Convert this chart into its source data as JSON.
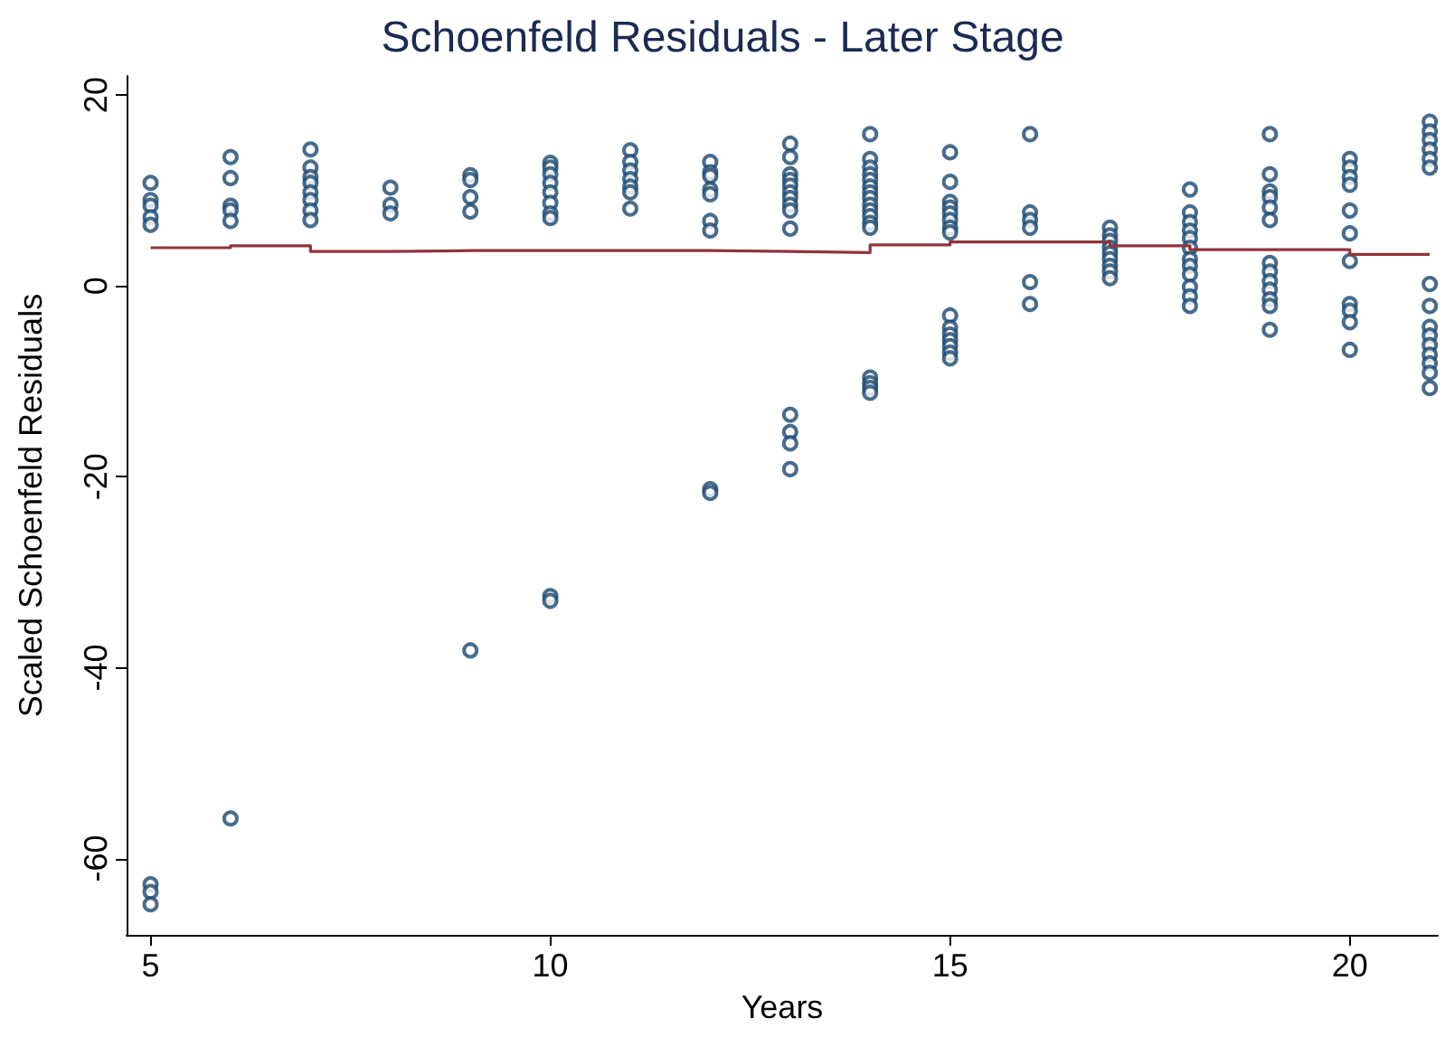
{
  "chart_data": {
    "type": "scatter",
    "title": "Schoenfeld Residuals - Later Stage",
    "xlabel": "Years",
    "ylabel": "Scaled Schoenfeld Residuals",
    "xlim": [
      4.7,
      21.1
    ],
    "xticks": [
      5,
      10,
      15,
      20
    ],
    "ylim": [
      -68,
      22
    ],
    "yticks": [
      -60,
      -40,
      -20,
      0,
      20
    ],
    "grid": false,
    "series": [
      {
        "marker": "circle",
        "color": "#1a476f",
        "x": [
          5,
          5,
          5,
          5,
          5,
          5,
          5,
          5,
          6,
          6,
          6,
          6,
          6,
          6,
          7,
          7,
          7,
          7,
          7,
          7,
          7,
          7,
          8,
          8,
          8,
          9,
          9,
          9,
          9,
          9,
          10,
          10,
          10,
          10,
          10,
          10,
          10,
          10,
          10,
          10,
          11,
          11,
          11,
          11,
          11,
          11,
          11,
          12,
          12,
          12,
          12,
          12,
          12,
          12,
          12,
          12,
          13,
          13,
          13,
          13,
          13,
          13,
          13,
          13,
          13,
          13,
          13,
          13,
          13,
          13,
          14,
          14,
          14,
          14,
          14,
          14,
          14,
          14,
          14,
          14,
          14,
          14,
          14,
          14,
          14,
          14,
          14,
          15,
          15,
          15,
          15,
          15,
          15,
          15,
          15,
          15,
          15,
          15,
          15,
          15,
          15,
          15,
          16,
          16,
          16,
          16,
          16,
          16,
          17,
          17,
          17,
          17,
          17,
          17,
          17,
          17,
          17,
          18,
          18,
          18,
          18,
          18,
          18,
          18,
          18,
          18,
          18,
          18,
          18,
          19,
          19,
          19,
          19,
          19,
          19,
          19,
          19,
          19,
          19,
          19,
          19,
          19,
          20,
          20,
          20,
          20,
          20,
          20,
          20,
          20,
          20,
          20,
          20,
          21,
          21,
          21,
          21,
          21,
          21,
          21,
          21,
          21,
          21,
          21,
          21,
          21,
          21,
          21
        ],
        "values": [
          10.8,
          9.0,
          8.4,
          7.2,
          6.4,
          -62.7,
          -63.5,
          -64.8,
          13.5,
          11.3,
          8.4,
          7.9,
          6.8,
          -55.8,
          14.3,
          12.4,
          11.4,
          10.8,
          9.8,
          9.0,
          7.9,
          6.9,
          10.3,
          8.5,
          7.6,
          11.6,
          11.1,
          9.3,
          7.8,
          -38.2,
          12.9,
          12.4,
          11.7,
          10.8,
          9.8,
          8.7,
          7.6,
          7.1,
          -32.5,
          -33.0,
          14.2,
          13.0,
          12.1,
          11.2,
          10.4,
          9.8,
          8.1,
          13.0,
          11.9,
          11.5,
          10.1,
          9.6,
          6.8,
          5.8,
          -21.3,
          -21.7,
          14.9,
          13.5,
          11.7,
          11.1,
          10.5,
          9.8,
          9.2,
          8.5,
          7.9,
          6.0,
          -13.5,
          -15.3,
          -16.5,
          -19.2,
          15.9,
          13.3,
          12.4,
          11.7,
          11.1,
          10.4,
          9.8,
          9.2,
          8.5,
          7.9,
          7.3,
          6.6,
          6.1,
          -9.6,
          -10.2,
          -10.7,
          -11.2,
          14.0,
          10.9,
          8.8,
          8.2,
          7.6,
          6.9,
          6.1,
          5.6,
          -3.1,
          -4.4,
          -5.1,
          -5.7,
          -6.3,
          -7.0,
          -7.6,
          15.9,
          7.7,
          6.9,
          6.1,
          0.4,
          -1.9,
          6.1,
          5.3,
          4.7,
          4.0,
          3.4,
          2.8,
          2.1,
          1.5,
          0.8,
          10.1,
          7.7,
          6.7,
          5.8,
          5.0,
          4.0,
          2.8,
          2.1,
          1.2,
          -0.1,
          -1.1,
          -2.1,
          15.9,
          11.7,
          9.9,
          9.3,
          8.2,
          6.9,
          2.4,
          1.5,
          0.5,
          -0.4,
          -1.4,
          -2.1,
          -4.6,
          13.3,
          12.4,
          11.4,
          10.6,
          7.9,
          5.5,
          2.6,
          -1.9,
          -2.6,
          -3.8,
          -6.7,
          17.2,
          16.2,
          15.3,
          14.3,
          13.3,
          12.4,
          0.2,
          -2.1,
          -4.3,
          -5.2,
          -6.2,
          -7.2,
          -8.1,
          -9.1,
          -10.7
        ]
      },
      {
        "type": "step",
        "marker": "none",
        "line_style": "solid",
        "color": "#90353b",
        "x": [
          5,
          6,
          7,
          8,
          9,
          10,
          11,
          12,
          13,
          14,
          15,
          16,
          17,
          18,
          19,
          20,
          21
        ],
        "values": [
          4.0,
          4.2,
          3.6,
          3.7,
          3.7,
          3.7,
          3.7,
          3.6,
          3.5,
          4.3,
          4.6,
          4.6,
          4.2,
          3.8,
          3.8,
          3.3,
          3.3
        ]
      }
    ]
  }
}
